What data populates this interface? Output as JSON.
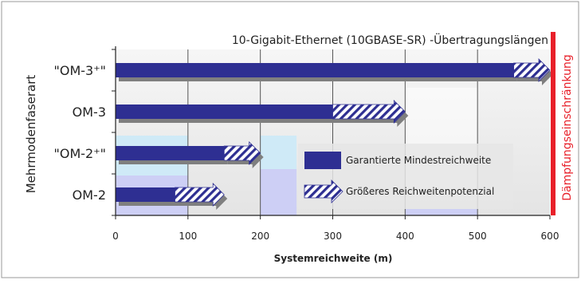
{
  "chart_data": {
    "type": "bar",
    "orientation": "horizontal",
    "title": "10-Gigabit-Ethernet (10GBASE-SR) -Übertragungslängen",
    "xlabel": "Systemreichweite (m)",
    "ylabel": "Mehrmodenfaserart",
    "xlim": [
      0,
      600
    ],
    "xticks": [
      "0",
      "100",
      "200",
      "300",
      "400",
      "500",
      "600"
    ],
    "grid": true,
    "categories": [
      "\"OM-3⁺\"",
      "OM-3",
      "\"OM-2⁺\"",
      "OM-2"
    ],
    "series": [
      {
        "name": "Garantierte Mindestreichweite",
        "values": [
          550,
          300,
          150,
          82
        ],
        "color": "#2e2f92"
      },
      {
        "name": "Größeres Reichweitenpotenzial",
        "values": [
          600,
          400,
          200,
          150
        ],
        "color": "#2e2f92",
        "pattern": "hatch"
      }
    ],
    "limit_line": {
      "x": 600,
      "label": "Dämpfungseinschränkung",
      "color": "#e8202a"
    },
    "legend": "center-right",
    "background_colors": {
      "band_light_blue": "#cfeaf7",
      "band_lavender": "#cdcff5",
      "plot_grey": "#e9e9e9"
    }
  }
}
